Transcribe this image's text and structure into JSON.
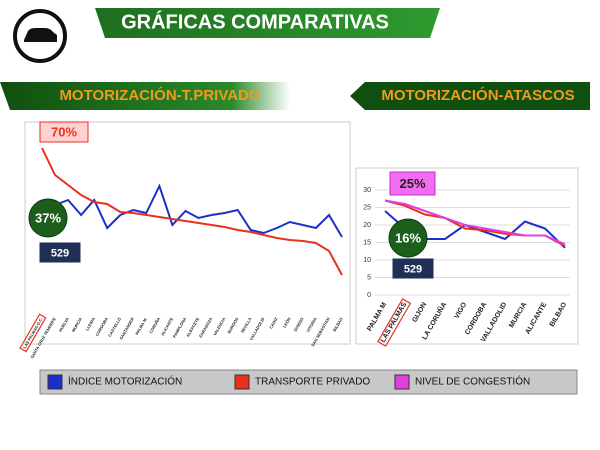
{
  "title": "GRÁFICAS COMPARATIVAS",
  "chart_data": [
    {
      "type": "line",
      "title": "MOTORIZACIÓN-T.PRIVADO",
      "categories": [
        "LAS PALMAS G.C.",
        "SANTA CRUZ TENERIFE",
        "HUELVA",
        "MURCIA",
        "LLEIDA",
        "CORDOBA",
        "CASTELLÓ",
        "SANTANDER",
        "PALMA M.",
        "CORUÑA",
        "ALICANTE",
        "PAMPLONA",
        "ALBACETE",
        "ZARAGOZA",
        "VALENCIA",
        "BURGOS",
        "SEVILLA",
        "VALLADOLID",
        "CADIZ",
        "LEÓN",
        "OVIEDO",
        "VITORIA",
        "SAN SEBASTIAN",
        "BILBAO"
      ],
      "highlight": "LAS PALMAS G.C.",
      "series": [
        {
          "color": "#1b2fc9",
          "values": [
            null,
            21,
            22,
            19,
            22,
            16.4,
            19,
            20,
            19.4,
            24.8,
            17,
            19.8,
            18.4,
            19,
            19.4,
            20,
            16,
            15.4,
            16.4,
            17.6,
            17,
            16.4,
            19,
            14.6
          ]
        },
        {
          "color": "#e8321e",
          "values": [
            32.4,
            27,
            25,
            23,
            21.6,
            21.2,
            19.6,
            19.4,
            19,
            18.6,
            18.2,
            17.8,
            17.4,
            17,
            16.6,
            16,
            15.6,
            15,
            14.4,
            14,
            13.8,
            13.4,
            11.8,
            7
          ]
        }
      ],
      "ylim": [
        0,
        36
      ],
      "annotations": [
        "70%",
        "37%",
        "529"
      ]
    },
    {
      "type": "line",
      "title": "MOTORIZACIÓN-ATASCOS",
      "categories": [
        "PALMA M",
        "LAS PALMAS",
        "GIJON",
        "LA CORUÑA",
        "VIGO",
        "CORDOBA",
        "VALLADOLID",
        "MURCIA",
        "ALICANTE",
        "BILBAO"
      ],
      "highlight": "LAS PALMAS",
      "series": [
        {
          "name": "ÍNDICE MOTORIZACIÓN",
          "color": "#1b2fc9",
          "values": [
            24,
            19,
            16,
            16,
            20,
            18,
            16,
            21,
            19,
            13.5
          ]
        },
        {
          "name": "TRANSPORTE PRIVADO",
          "color": "#e8321e",
          "values": [
            27,
            25.5,
            23,
            22,
            19,
            18.5,
            17.5,
            17,
            17,
            14
          ]
        },
        {
          "name": "NIVEL DE CONGESTIÓN",
          "color": "#e040e0",
          "values": [
            27,
            26,
            24,
            22,
            20,
            19,
            18,
            17,
            17,
            14.5
          ]
        }
      ],
      "ylim": [
        0,
        30
      ],
      "yticks": [
        0,
        5,
        10,
        15,
        20,
        25,
        30
      ],
      "annotations": [
        "25%",
        "16%",
        "529"
      ]
    }
  ]
}
